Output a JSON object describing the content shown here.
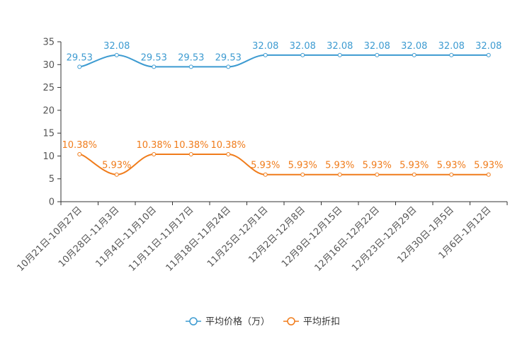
{
  "chart_data": {
    "type": "line",
    "title": "",
    "xlabel": "",
    "ylabel": "",
    "ylim": [
      0,
      35
    ],
    "yticks": [
      0,
      5,
      10,
      15,
      20,
      25,
      30,
      35
    ],
    "grid": false,
    "legend_position": "bottom",
    "categories": [
      "10月21日-10月27日",
      "10月28日-11月3日",
      "11月4日-11月10日",
      "11月11日-11月17日",
      "11月18日-11月24日",
      "11月25日-12月1日",
      "12月2日-12月8日",
      "12月9日-12月15日",
      "12月16日-12月22日",
      "12月23日-12月29日",
      "12月30日-1月5日",
      "1月6日-1月12日"
    ],
    "series": [
      {
        "name": "平均价格（万）",
        "color": "#3d9bd1",
        "values": [
          29.53,
          32.08,
          29.53,
          29.53,
          29.53,
          32.08,
          32.08,
          32.08,
          32.08,
          32.08,
          32.08,
          32.08
        ],
        "labels": [
          "29.53",
          "32.08",
          "29.53",
          "29.53",
          "29.53",
          "32.08",
          "32.08",
          "32.08",
          "32.08",
          "32.08",
          "32.08",
          "32.08"
        ]
      },
      {
        "name": "平均折扣",
        "color": "#f07c1b",
        "values": [
          10.38,
          5.93,
          10.38,
          10.38,
          10.38,
          5.93,
          5.93,
          5.93,
          5.93,
          5.93,
          5.93,
          5.93
        ],
        "labels": [
          "10.38%",
          "5.93%",
          "10.38%",
          "10.38%",
          "10.38%",
          "5.93%",
          "5.93%",
          "5.93%",
          "5.93%",
          "5.93%",
          "5.93%",
          "5.93%"
        ]
      }
    ]
  }
}
